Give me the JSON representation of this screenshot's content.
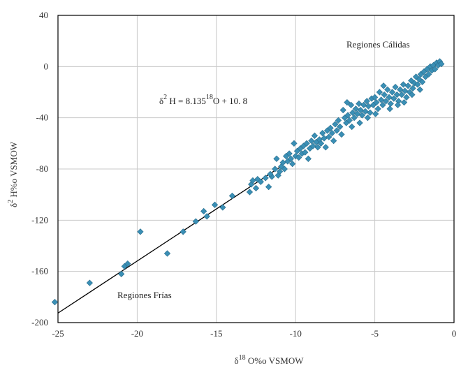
{
  "chart_data": {
    "type": "scatter",
    "xlabel_main": "δ",
    "xlabel_sup": "18",
    "xlabel_rest": " O%o VSMOW",
    "ylabel_main": "δ",
    "ylabel_sup": "2",
    "ylabel_rest": " H%o VSMOW",
    "xlim": [
      -25,
      0
    ],
    "ylim": [
      -200,
      40
    ],
    "x_ticks": [
      -25,
      -20,
      -15,
      -10,
      -5,
      0
    ],
    "y_ticks": [
      -200,
      -160,
      -120,
      -80,
      -40,
      0,
      40
    ],
    "x_tick_labels": [
      "-25",
      "-20",
      "-15",
      "-10",
      "-5",
      "0"
    ],
    "y_tick_labels": [
      "-200",
      "-160",
      "-120",
      "-80",
      "-40",
      "0",
      "40"
    ],
    "grid": true,
    "annotations": {
      "equation_prefix": "δ",
      "equation_sup1": "2",
      "equation_mid": " H = 8.135",
      "equation_sup2": "18",
      "equation_end": "O + 10. 8",
      "warm_label": "Regiones Cálidas",
      "cold_label": "Regiones Frías"
    },
    "trendline": {
      "slope": 8.135,
      "intercept": 10.8,
      "x_range": [
        -25,
        -11
      ]
    },
    "series": [
      {
        "color": "#3a8fb5",
        "points": [
          [
            -25.2,
            -184
          ],
          [
            -23.0,
            -169
          ],
          [
            -21.0,
            -162
          ],
          [
            -20.8,
            -156
          ],
          [
            -20.6,
            -154
          ],
          [
            -19.8,
            -129
          ],
          [
            -18.1,
            -146
          ],
          [
            -17.1,
            -129
          ],
          [
            -16.3,
            -121
          ],
          [
            -15.8,
            -113
          ],
          [
            -15.6,
            -117
          ],
          [
            -15.1,
            -108
          ],
          [
            -14.6,
            -110
          ],
          [
            -14.0,
            -101
          ],
          [
            -12.9,
            -98
          ],
          [
            -12.8,
            -92
          ],
          [
            -12.7,
            -89
          ],
          [
            -12.5,
            -95
          ],
          [
            -12.4,
            -88
          ],
          [
            -12.2,
            -90
          ],
          [
            -11.7,
            -94
          ],
          [
            -11.5,
            -86
          ],
          [
            -11.3,
            -80
          ],
          [
            -11.2,
            -72
          ],
          [
            -11.1,
            -85
          ],
          [
            -11.0,
            -82
          ],
          [
            -10.9,
            -78
          ],
          [
            -10.8,
            -75
          ],
          [
            -10.6,
            -70
          ],
          [
            -10.5,
            -74
          ],
          [
            -10.4,
            -68
          ],
          [
            -10.3,
            -72
          ],
          [
            -10.1,
            -60
          ],
          [
            -10.0,
            -70
          ],
          [
            -9.9,
            -66
          ],
          [
            -9.8,
            -71
          ],
          [
            -9.7,
            -64
          ],
          [
            -9.6,
            -68
          ],
          [
            -9.5,
            -62
          ],
          [
            -9.4,
            -67
          ],
          [
            -9.3,
            -60
          ],
          [
            -9.1,
            -64
          ],
          [
            -9.0,
            -58
          ],
          [
            -8.9,
            -62
          ],
          [
            -8.8,
            -54
          ],
          [
            -8.7,
            -59
          ],
          [
            -8.6,
            -63
          ],
          [
            -8.5,
            -57
          ],
          [
            -8.4,
            -60
          ],
          [
            -8.3,
            -52
          ],
          [
            -8.2,
            -56
          ],
          [
            -8.0,
            -50
          ],
          [
            -7.9,
            -55
          ],
          [
            -7.8,
            -48
          ],
          [
            -7.7,
            -52
          ],
          [
            -7.5,
            -45
          ],
          [
            -7.4,
            -50
          ],
          [
            -7.3,
            -42
          ],
          [
            -7.2,
            -47
          ],
          [
            -7.0,
            -34
          ],
          [
            -6.9,
            -40
          ],
          [
            -6.8,
            -44
          ],
          [
            -6.7,
            -38
          ],
          [
            -6.6,
            -42
          ],
          [
            -6.5,
            -30
          ],
          [
            -6.4,
            -36
          ],
          [
            -6.3,
            -40
          ],
          [
            -6.2,
            -33
          ],
          [
            -6.1,
            -37
          ],
          [
            -6.0,
            -29
          ],
          [
            -5.9,
            -34
          ],
          [
            -5.8,
            -38
          ],
          [
            -5.7,
            -30
          ],
          [
            -5.6,
            -35
          ],
          [
            -5.5,
            -27
          ],
          [
            -5.4,
            -31
          ],
          [
            -5.3,
            -36
          ],
          [
            -5.2,
            -25
          ],
          [
            -5.1,
            -30
          ],
          [
            -5.0,
            -24
          ],
          [
            -4.9,
            -28
          ],
          [
            -4.8,
            -33
          ],
          [
            -4.7,
            -20
          ],
          [
            -4.6,
            -26
          ],
          [
            -4.5,
            -30
          ],
          [
            -4.4,
            -22
          ],
          [
            -4.3,
            -27
          ],
          [
            -4.2,
            -18
          ],
          [
            -4.1,
            -24
          ],
          [
            -4.0,
            -29
          ],
          [
            -3.9,
            -20
          ],
          [
            -3.8,
            -25
          ],
          [
            -3.7,
            -16
          ],
          [
            -3.6,
            -22
          ],
          [
            -3.5,
            -27
          ],
          [
            -3.4,
            -18
          ],
          [
            -3.3,
            -22
          ],
          [
            -3.2,
            -14
          ],
          [
            -3.1,
            -19
          ],
          [
            -3.0,
            -24
          ],
          [
            -2.9,
            -15
          ],
          [
            -2.8,
            -20
          ],
          [
            -2.7,
            -11
          ],
          [
            -2.6,
            -17
          ],
          [
            -2.5,
            -13
          ],
          [
            -2.4,
            -8
          ],
          [
            -2.3,
            -14
          ],
          [
            -2.2,
            -10
          ],
          [
            -2.1,
            -6
          ],
          [
            -2.0,
            -12
          ],
          [
            -1.9,
            -4
          ],
          [
            -1.8,
            -8
          ],
          [
            -1.7,
            -2
          ],
          [
            -1.6,
            -6
          ],
          [
            -1.5,
            0
          ],
          [
            -1.4,
            -3
          ],
          [
            -1.3,
            1
          ],
          [
            -1.2,
            -2
          ],
          [
            -1.1,
            3
          ],
          [
            -1.0,
            1
          ],
          [
            -0.9,
            4
          ],
          [
            -0.8,
            2
          ],
          [
            -11.9,
            -87
          ],
          [
            -11.6,
            -84
          ],
          [
            -10.7,
            -80
          ],
          [
            -10.2,
            -76
          ],
          [
            -9.2,
            -72
          ],
          [
            -8.1,
            -63
          ],
          [
            -7.6,
            -58
          ],
          [
            -7.1,
            -53
          ],
          [
            -6.75,
            -28
          ],
          [
            -6.45,
            -47
          ],
          [
            -5.95,
            -44
          ],
          [
            -5.45,
            -40
          ],
          [
            -4.95,
            -37
          ],
          [
            -4.45,
            -15
          ],
          [
            -4.05,
            -33
          ],
          [
            -3.55,
            -30
          ],
          [
            -3.15,
            -28
          ],
          [
            -2.65,
            -22
          ],
          [
            -2.15,
            -18
          ]
        ]
      }
    ]
  }
}
